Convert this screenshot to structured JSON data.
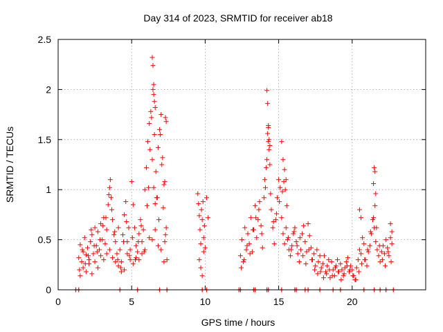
{
  "chart_data": {
    "type": "scatter",
    "title": "Day 314 of 2023, SRMTID for receiver ab18",
    "xlabel": "GPS time / hours",
    "ylabel": "SRMTID / TECUs",
    "xlim": [
      0,
      25
    ],
    "ylim": [
      0,
      2.5
    ],
    "x_ticks": [
      0,
      5,
      10,
      15,
      20
    ],
    "y_ticks": [
      0,
      0.5,
      1,
      1.5,
      2,
      2.5
    ],
    "x_tick_labels": [
      "0",
      "5",
      "10",
      "15",
      "20"
    ],
    "y_tick_labels": [
      "0",
      "0.5",
      "1",
      "1.5",
      "2",
      "2.5"
    ],
    "grid": true,
    "marker": "plus",
    "color": "#ff0000",
    "series": [
      {
        "name": "SRMTID",
        "x": [
          1.4,
          1.5,
          1.6,
          1.7,
          1.8,
          1.9,
          2.0,
          2.1,
          2.2,
          2.3,
          2.4,
          2.5,
          2.6,
          2.7,
          2.8,
          2.9,
          3.0,
          3.1,
          3.2,
          3.3,
          3.4,
          3.5,
          3.6,
          3.7,
          3.8,
          3.9,
          4.0,
          4.1,
          4.2,
          4.3,
          4.4,
          4.5,
          4.6,
          4.7,
          4.8,
          4.9,
          5.0,
          5.1,
          5.2,
          5.3,
          5.4,
          5.5,
          5.6,
          5.7,
          5.8,
          5.9,
          6.0,
          6.1,
          6.2,
          6.3,
          6.4,
          6.5,
          6.6,
          6.7,
          6.8,
          6.9,
          7.0,
          7.1,
          7.2,
          7.3,
          7.4,
          1.45,
          1.65,
          1.85,
          2.05,
          2.25,
          2.45,
          2.65,
          2.85,
          3.05,
          3.25,
          3.45,
          3.55,
          3.65,
          3.85,
          4.05,
          4.25,
          4.45,
          4.65,
          4.85,
          5.05,
          5.25,
          5.45,
          5.65,
          5.85,
          6.05,
          6.15,
          6.25,
          6.35,
          6.45,
          6.55,
          6.65,
          6.75,
          6.85,
          6.95,
          7.05,
          7.15,
          7.25,
          7.35,
          1.5,
          1.7,
          1.9,
          2.1,
          2.3,
          2.5,
          2.7,
          2.9,
          3.1,
          3.3,
          3.5,
          3.7,
          3.9,
          4.1,
          4.3,
          4.5,
          4.7,
          4.9,
          5.1,
          5.3,
          5.5,
          5.7,
          5.9,
          6.2,
          6.4,
          6.6,
          6.8,
          7.0,
          7.2,
          6.4,
          6.45,
          6.5,
          6.5,
          6.55,
          6.6,
          7.3,
          7.35,
          7.25,
          9.5,
          9.55,
          9.6,
          9.65,
          9.7,
          9.75,
          9.8,
          9.85,
          9.9,
          9.95,
          10.0,
          10.1,
          10.2,
          9.6,
          9.7,
          9.8,
          9.9,
          12.4,
          12.5,
          12.6,
          12.7,
          12.8,
          12.9,
          13.0,
          13.1,
          13.2,
          13.3,
          13.4,
          13.5,
          13.6,
          13.7,
          13.8,
          13.9,
          14.0,
          14.1,
          14.2,
          14.3,
          14.4,
          14.5,
          14.6,
          14.7,
          14.8,
          14.9,
          15.0,
          15.1,
          15.2,
          15.3,
          15.4,
          15.5,
          15.6,
          15.7,
          15.8,
          15.9,
          16.0,
          16.1,
          16.2,
          16.3,
          16.4,
          16.5,
          16.6,
          16.7,
          16.8,
          16.9,
          17.0,
          17.1,
          17.2,
          17.3,
          17.4,
          17.5,
          17.6,
          17.7,
          17.8,
          17.9,
          12.45,
          12.65,
          12.85,
          13.05,
          13.25,
          13.45,
          13.65,
          13.85,
          14.05,
          14.15,
          14.25,
          14.3,
          14.35,
          14.45,
          14.65,
          14.85,
          15.05,
          15.25,
          15.35,
          15.45,
          15.55,
          15.65,
          15.85,
          16.05,
          16.25,
          16.45,
          16.65,
          16.85,
          17.05,
          17.25,
          17.45,
          17.65,
          17.85,
          14.2,
          14.25,
          14.3,
          14.35,
          14.4,
          15.3,
          15.4,
          15.5,
          15.2,
          18.0,
          18.1,
          18.2,
          18.3,
          18.4,
          18.5,
          18.6,
          18.7,
          18.8,
          18.9,
          19.0,
          19.1,
          19.2,
          19.3,
          19.4,
          19.5,
          19.6,
          19.7,
          19.8,
          19.9,
          20.0,
          20.1,
          20.2,
          20.3,
          20.4,
          20.5,
          20.6,
          20.7,
          20.8,
          20.9,
          21.0,
          21.1,
          21.2,
          21.3,
          21.4,
          21.5,
          21.6,
          21.7,
          21.8,
          21.9,
          22.0,
          22.1,
          22.2,
          22.3,
          22.4,
          22.5,
          22.6,
          22.7,
          18.05,
          18.25,
          18.45,
          18.65,
          18.85,
          19.05,
          19.25,
          19.45,
          19.65,
          19.85,
          20.05,
          20.25,
          20.45,
          20.65,
          20.85,
          21.05,
          21.25,
          21.45,
          21.55,
          21.65,
          21.85,
          22.05,
          22.25,
          22.45,
          22.65,
          21.5,
          21.55,
          21.6,
          21.45,
          20.5,
          20.6,
          22.6,
          22.7
        ],
        "y": [
          0.32,
          0.45,
          0.28,
          0.38,
          0.52,
          0.35,
          0.42,
          0.3,
          0.48,
          0.55,
          0.36,
          0.62,
          0.44,
          0.58,
          0.4,
          0.66,
          0.5,
          0.72,
          0.46,
          0.6,
          0.85,
          1.02,
          0.92,
          0.7,
          0.55,
          0.48,
          0.36,
          0.62,
          0.4,
          0.28,
          0.55,
          0.75,
          0.88,
          0.48,
          0.62,
          0.4,
          1.08,
          0.85,
          0.62,
          0.44,
          0.38,
          0.56,
          0.7,
          0.48,
          0.6,
          1.0,
          1.22,
          1.48,
          1.66,
          1.78,
          1.3,
          1.02,
          0.86,
          0.92,
          1.42,
          1.6,
          1.75,
          1.32,
          1.05,
          0.55,
          0.3,
          0.2,
          0.4,
          0.26,
          0.34,
          0.6,
          0.44,
          0.38,
          0.5,
          0.64,
          0.72,
          0.95,
          1.1,
          0.8,
          0.58,
          0.3,
          0.22,
          0.48,
          0.68,
          0.34,
          0.52,
          0.3,
          0.48,
          0.64,
          0.38,
          0.84,
          1.02,
          1.4,
          1.72,
          2.0,
          1.55,
          1.18,
          0.92,
          0.7,
          1.55,
          1.25,
          0.82,
          0.48,
          0.62,
          0.14,
          0.22,
          0.18,
          0.26,
          0.16,
          0.28,
          0.22,
          0.34,
          0.3,
          0.36,
          0.4,
          0.32,
          0.28,
          0.24,
          0.18,
          0.2,
          0.36,
          0.3,
          0.26,
          0.32,
          0.3,
          0.36,
          0.4,
          0.52,
          0.5,
          0.6,
          0.44,
          0.4,
          0.28,
          2.32,
          2.24,
          2.05,
          1.95,
          1.88,
          1.82,
          1.72,
          1.68,
          1.08,
          0.96,
          0.86,
          0.74,
          0.6,
          0.46,
          0.8,
          0.7,
          0.88,
          0.52,
          0.64,
          0.42,
          0.92,
          0.72,
          0.3,
          0.22,
          0.14,
          0.38,
          0.34,
          0.5,
          0.28,
          0.62,
          0.4,
          0.56,
          0.46,
          0.72,
          0.38,
          0.6,
          0.84,
          0.52,
          0.7,
          0.88,
          0.64,
          0.42,
          0.92,
          1.02,
          1.3,
          1.48,
          1.25,
          0.8,
          0.62,
          0.46,
          0.7,
          0.92,
          1.1,
          1.02,
          0.72,
          0.56,
          0.46,
          0.62,
          0.5,
          0.4,
          0.34,
          0.44,
          0.56,
          0.62,
          0.48,
          0.36,
          0.28,
          0.4,
          0.56,
          0.64,
          0.48,
          0.38,
          0.66,
          0.54,
          0.42,
          0.3,
          0.36,
          0.24,
          0.4,
          0.28,
          0.34,
          0.22,
          0.22,
          0.3,
          0.44,
          0.36,
          0.6,
          0.72,
          0.8,
          0.56,
          1.1,
          1.22,
          1.56,
          1.62,
          1.4,
          0.96,
          0.68,
          0.76,
          0.88,
          0.98,
          1.08,
          1.0,
          0.84,
          0.52,
          0.4,
          0.58,
          0.44,
          0.52,
          0.34,
          0.26,
          0.4,
          0.3,
          0.2,
          0.16,
          0.18,
          1.99,
          1.86,
          1.64,
          1.5,
          1.44,
          1.3,
          1.2,
          1.1,
          1.48,
          0.26,
          0.34,
          0.18,
          0.24,
          0.3,
          0.12,
          0.28,
          0.2,
          0.14,
          0.24,
          0.3,
          0.18,
          0.26,
          0.2,
          0.14,
          0.22,
          0.28,
          0.32,
          0.18,
          0.24,
          0.2,
          0.14,
          0.1,
          0.22,
          0.3,
          0.4,
          0.36,
          0.52,
          0.46,
          0.3,
          0.24,
          0.38,
          0.44,
          0.56,
          0.7,
          0.62,
          0.48,
          0.4,
          0.34,
          0.28,
          0.38,
          0.44,
          0.36,
          0.5,
          0.42,
          0.34,
          0.52,
          0.46,
          0.12,
          0.16,
          0.2,
          0.14,
          0.22,
          0.18,
          0.1,
          0.16,
          0.24,
          0.2,
          0.14,
          0.1,
          0.18,
          0.26,
          0.3,
          0.4,
          0.58,
          0.72,
          0.84,
          0.62,
          0.44,
          0.3,
          0.24,
          0.38,
          0.28,
          1.22,
          1.18,
          0.96,
          1.06,
          0.8,
          0.72,
          0.66,
          0.58
        ],
        "baseline_x": [
          1.2,
          1.4,
          4.2,
          5.4,
          6.9,
          7.4,
          9.8,
          10.1,
          12.3,
          12.4,
          13.3,
          13.4,
          14.2,
          14.3,
          15.2,
          16.1,
          16.2,
          16.8,
          17.0,
          17.8,
          18.7,
          19.2,
          20.8,
          21.5,
          21.9,
          22.3,
          22.8
        ],
        "baseline_y": 0
      }
    ]
  }
}
